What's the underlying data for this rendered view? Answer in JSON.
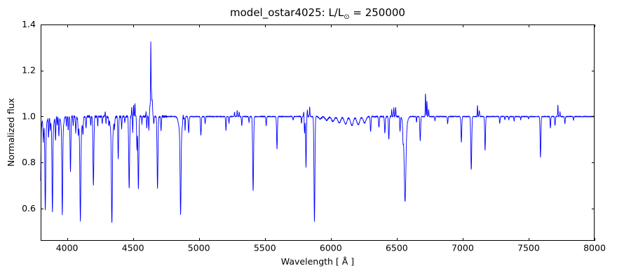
{
  "title": {
    "main": "model_ostar4025: L/L",
    "sub": "⊙",
    "tail": " = 250000"
  },
  "chart_data": {
    "type": "line",
    "title": "model_ostar4025: L/L⊙ = 250000",
    "xlabel": "Wavelength [ Å ]",
    "ylabel": "Normalized flux",
    "xlim": [
      3800,
      8000
    ],
    "ylim": [
      0.46,
      1.4
    ],
    "xticks": [
      4000,
      4500,
      5000,
      5500,
      6000,
      6500,
      7000,
      7500,
      8000
    ],
    "yticks": [
      0.6,
      0.8,
      1.0,
      1.2,
      1.4
    ],
    "grid": false,
    "legend_position": "none",
    "line_color": "#0000ff",
    "background": "#ffffff",
    "continuum": 1.0,
    "sample_step": 1,
    "line_profile": "gaussian",
    "line_format": [
      "wavelength_A",
      "peak_flux",
      "sigma_A"
    ],
    "absorption_lines": [
      [
        3798,
        0.73,
        3
      ],
      [
        3798,
        0.94,
        9
      ],
      [
        3820,
        0.91,
        2.5
      ],
      [
        3835,
        0.66,
        3
      ],
      [
        3835,
        0.93,
        9
      ],
      [
        3860,
        0.91,
        2.5
      ],
      [
        3872,
        0.95,
        2
      ],
      [
        3889,
        0.655,
        3
      ],
      [
        3889,
        0.93,
        9
      ],
      [
        3913,
        0.9,
        2.5
      ],
      [
        3926,
        0.96,
        2
      ],
      [
        3938,
        0.92,
        2.5
      ],
      [
        3964,
        0.64,
        3
      ],
      [
        3964,
        0.93,
        9
      ],
      [
        3995,
        0.96,
        2
      ],
      [
        4009,
        0.94,
        2.5
      ],
      [
        4026,
        0.76,
        3
      ],
      [
        4046,
        0.96,
        2
      ],
      [
        4066,
        0.93,
        2.5
      ],
      [
        4085,
        0.95,
        2
      ],
      [
        4101,
        0.63,
        3.5
      ],
      [
        4101,
        0.92,
        11
      ],
      [
        4121,
        0.94,
        2.5
      ],
      [
        4144,
        0.95,
        2.5
      ],
      [
        4180,
        0.96,
        2
      ],
      [
        4200,
        0.7,
        3.5
      ],
      [
        4233,
        0.96,
        2
      ],
      [
        4267,
        0.97,
        2
      ],
      [
        4295,
        0.97,
        2
      ],
      [
        4317,
        0.965,
        2
      ],
      [
        4340,
        0.615,
        3.5
      ],
      [
        4340,
        0.92,
        11
      ],
      [
        4360,
        0.96,
        2
      ],
      [
        4388,
        0.82,
        3
      ],
      [
        4414,
        0.95,
        2.5
      ],
      [
        4438,
        0.97,
        2
      ],
      [
        4471,
        0.69,
        3.5
      ],
      [
        4498,
        0.93,
        2
      ],
      [
        4530,
        0.86,
        2.5
      ],
      [
        4541,
        0.69,
        3.5
      ],
      [
        4568,
        0.97,
        2
      ],
      [
        4604,
        0.95,
        2.5
      ],
      [
        4620,
        0.94,
        2
      ],
      [
        4658,
        0.965,
        2
      ],
      [
        4686,
        0.69,
        3.5
      ],
      [
        4713,
        0.94,
        2.5
      ],
      [
        4861,
        0.655,
        3.5
      ],
      [
        4861,
        0.92,
        12
      ],
      [
        4895,
        0.94,
        2
      ],
      [
        4922,
        0.93,
        3
      ],
      [
        5015,
        0.92,
        3
      ],
      [
        5047,
        0.97,
        2.5
      ],
      [
        5205,
        0.94,
        2.5
      ],
      [
        5228,
        0.97,
        2
      ],
      [
        5325,
        0.96,
        2.5
      ],
      [
        5380,
        0.975,
        2.5
      ],
      [
        5411,
        0.68,
        3.5
      ],
      [
        5510,
        0.96,
        2.5
      ],
      [
        5592,
        0.86,
        3
      ],
      [
        5714,
        0.985,
        2.5
      ],
      [
        5778,
        0.97,
        2
      ],
      [
        5801,
        0.93,
        2.5
      ],
      [
        5812,
        0.78,
        2.8
      ],
      [
        5876,
        0.545,
        3.5
      ],
      [
        5920,
        0.99,
        10
      ],
      [
        5968,
        0.984,
        11
      ],
      [
        6016,
        0.979,
        11
      ],
      [
        6064,
        0.973,
        11
      ],
      [
        6112,
        0.968,
        11
      ],
      [
        6160,
        0.962,
        11
      ],
      [
        6208,
        0.965,
        11
      ],
      [
        6256,
        0.972,
        10
      ],
      [
        6302,
        0.935,
        3
      ],
      [
        6365,
        0.952,
        3
      ],
      [
        6410,
        0.93,
        3
      ],
      [
        6440,
        0.9,
        3
      ],
      [
        6525,
        0.935,
        2.5
      ],
      [
        6548,
        0.93,
        2.5
      ],
      [
        6563,
        0.7,
        6
      ],
      [
        6563,
        0.93,
        13
      ],
      [
        6650,
        0.975,
        2
      ],
      [
        6678,
        0.895,
        3
      ],
      [
        6790,
        0.982,
        2.5
      ],
      [
        6886,
        0.97,
        2.5
      ],
      [
        6990,
        0.89,
        3
      ],
      [
        7065,
        0.77,
        3.5
      ],
      [
        7170,
        0.855,
        3
      ],
      [
        7281,
        0.97,
        2.5
      ],
      [
        7320,
        0.985,
        2
      ],
      [
        7350,
        0.985,
        2
      ],
      [
        7390,
        0.98,
        2
      ],
      [
        7440,
        0.985,
        2
      ],
      [
        7500,
        0.99,
        2
      ],
      [
        7590,
        0.825,
        3
      ],
      [
        7665,
        0.95,
        2.5
      ],
      [
        7700,
        0.96,
        2.5
      ],
      [
        7775,
        0.97,
        2.5
      ],
      [
        7840,
        0.985,
        2.5
      ]
    ],
    "emission_lines": [
      [
        4290,
        1.02,
        2
      ],
      [
        4490,
        1.04,
        1.8
      ],
      [
        4504,
        1.05,
        1.8
      ],
      [
        4515,
        1.06,
        1.8
      ],
      [
        4600,
        1.03,
        2
      ],
      [
        4628,
        1.03,
        2
      ],
      [
        4635,
        1.22,
        1.5
      ],
      [
        4638,
        1.12,
        5
      ],
      [
        4647,
        1.04,
        2
      ],
      [
        4880,
        1.03,
        1.8
      ],
      [
        5270,
        1.02,
        1.8
      ],
      [
        5290,
        1.025,
        1.8
      ],
      [
        5305,
        1.02,
        1.8
      ],
      [
        5795,
        1.025,
        1.8
      ],
      [
        5822,
        1.03,
        1.8
      ],
      [
        5840,
        1.04,
        1.8
      ],
      [
        6462,
        1.03,
        1.8
      ],
      [
        6478,
        1.04,
        1.8
      ],
      [
        6492,
        1.04,
        1.8
      ],
      [
        6718,
        1.1,
        2
      ],
      [
        6729,
        1.065,
        2
      ],
      [
        6742,
        1.03,
        2
      ],
      [
        7112,
        1.05,
        1.8
      ],
      [
        7126,
        1.025,
        2.5
      ],
      [
        7722,
        1.05,
        1.8
      ],
      [
        7738,
        1.02,
        1.8
      ]
    ],
    "noise": {
      "seed": 7,
      "bands": [
        {
          "from": 3800,
          "to": 4760,
          "amp": 0.005
        },
        {
          "from": 4760,
          "to": 5760,
          "amp": 0.002
        },
        {
          "from": 5760,
          "to": 6560,
          "amp": 0.003
        },
        {
          "from": 6560,
          "to": 8001,
          "amp": 0.002
        }
      ]
    }
  }
}
